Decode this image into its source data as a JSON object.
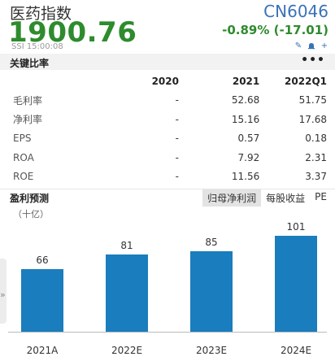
{
  "header": {
    "title": "医药指数",
    "code": "CN6046",
    "price": "1900.76",
    "change": "-0.89% (-17.01)",
    "meta": "SSI  15:00:08"
  },
  "ratios": {
    "section_label": "关键比率",
    "more_label": "•••",
    "columns": [
      "2020",
      "2021",
      "2022Q1"
    ],
    "rows": [
      {
        "label": "毛利率",
        "values": [
          "-",
          "52.68",
          "51.75"
        ]
      },
      {
        "label": "净利率",
        "values": [
          "-",
          "15.16",
          "17.68"
        ]
      },
      {
        "label": "EPS",
        "values": [
          "-",
          "0.57",
          "0.18"
        ]
      },
      {
        "label": "ROA",
        "values": [
          "-",
          "7.92",
          "2.31"
        ]
      },
      {
        "label": "ROE",
        "values": [
          "-",
          "11.56",
          "3.37"
        ]
      }
    ]
  },
  "forecast": {
    "section_label": "盈利预测",
    "tabs": [
      "归母净利润",
      "每股收益",
      "PE"
    ],
    "active_tab": 0,
    "unit": "（十亿）",
    "side_toggle": "»"
  },
  "chart_data": {
    "type": "bar",
    "categories": [
      "2021A",
      "2022E",
      "2023E",
      "2024E"
    ],
    "values": [
      66,
      81,
      85,
      101
    ],
    "ylabel": "（十亿）",
    "bar_color": "#1a7dbd"
  },
  "colors": {
    "accent": "#3a72b8",
    "down": "#2e8b2e",
    "bar": "#1a7dbd"
  }
}
